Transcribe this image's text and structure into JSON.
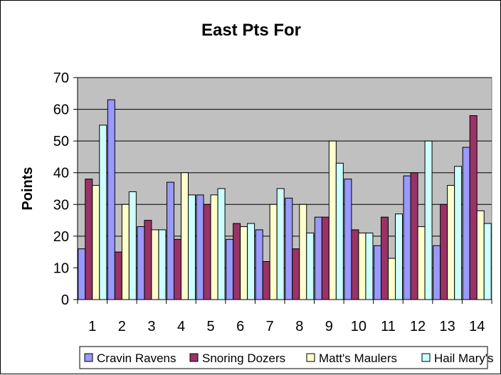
{
  "chart_data": {
    "type": "bar",
    "title": "East Pts For",
    "xlabel": "",
    "ylabel": "Points",
    "ylim": [
      0,
      70
    ],
    "yticks": [
      0,
      10,
      20,
      30,
      40,
      50,
      60,
      70
    ],
    "categories": [
      "1",
      "2",
      "3",
      "4",
      "5",
      "6",
      "7",
      "8",
      "9",
      "10",
      "11",
      "12",
      "13",
      "14"
    ],
    "grid": "horizontal",
    "legend_position": "bottom",
    "plot_background": "#c0c0c0",
    "series": [
      {
        "name": "Cravin Ravens",
        "color": "#9999ff",
        "values": [
          16,
          63,
          23,
          37,
          33,
          19,
          22,
          32,
          26,
          38,
          17,
          39,
          17,
          48
        ]
      },
      {
        "name": "Snoring Dozers",
        "color": "#993366",
        "values": [
          38,
          15,
          25,
          19,
          30,
          24,
          12,
          16,
          26,
          22,
          26,
          40,
          30,
          58
        ]
      },
      {
        "name": "Matt's Maulers",
        "color": "#ffffcc",
        "values": [
          36,
          30,
          22,
          40,
          33,
          23,
          30,
          30,
          50,
          21,
          13,
          23,
          36,
          28
        ]
      },
      {
        "name": "Hail Mary's",
        "color": "#ccffff",
        "values": [
          55,
          34,
          22,
          33,
          35,
          24,
          35,
          21,
          43,
          21,
          27,
          50,
          42,
          24
        ]
      }
    ]
  }
}
